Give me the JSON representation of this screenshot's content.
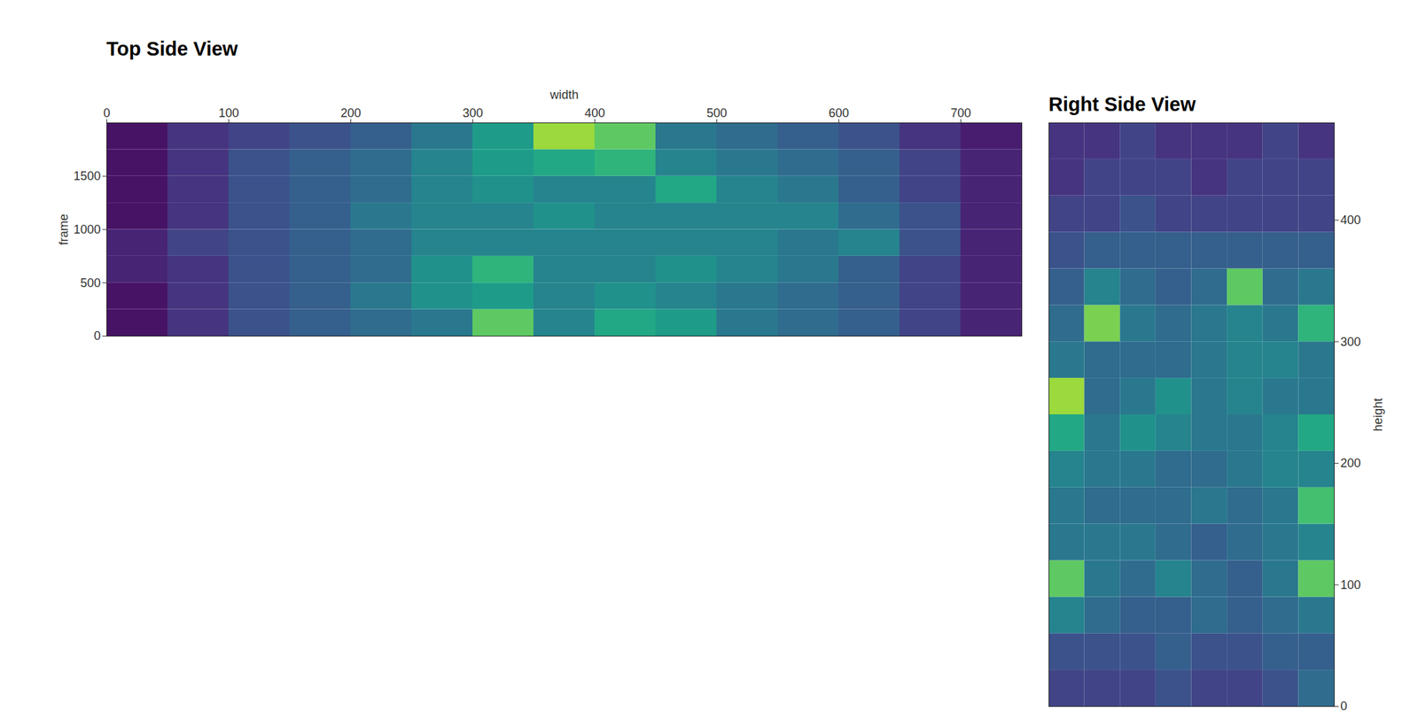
{
  "chart_data": [
    {
      "type": "heatmap",
      "title": "Top Side View",
      "x_label": "width",
      "y_label": "frame",
      "xlim": [
        0,
        750
      ],
      "ylim": [
        0,
        2000
      ],
      "xticks": [
        0,
        100,
        200,
        300,
        400,
        500,
        600,
        700
      ],
      "yticks": [
        0,
        500,
        1000,
        1500
      ],
      "color": "viridis",
      "zlim": [
        0,
        1
      ],
      "x_bins": [
        0,
        50,
        100,
        150,
        200,
        250,
        300,
        350,
        400,
        450,
        500,
        550,
        600,
        650,
        700,
        750
      ],
      "y_bins": [
        0,
        250,
        500,
        750,
        1000,
        1250,
        1500,
        1750,
        2000
      ],
      "values": [
        [
          0.05,
          0.15,
          0.25,
          0.3,
          0.35,
          0.4,
          0.75,
          0.45,
          0.6,
          0.55,
          0.4,
          0.35,
          0.3,
          0.2,
          0.1
        ],
        [
          0.05,
          0.15,
          0.25,
          0.3,
          0.4,
          0.5,
          0.55,
          0.45,
          0.5,
          0.45,
          0.4,
          0.35,
          0.3,
          0.2,
          0.1
        ],
        [
          0.1,
          0.15,
          0.25,
          0.3,
          0.35,
          0.5,
          0.65,
          0.45,
          0.45,
          0.5,
          0.45,
          0.4,
          0.3,
          0.2,
          0.1
        ],
        [
          0.1,
          0.2,
          0.25,
          0.3,
          0.35,
          0.45,
          0.45,
          0.45,
          0.45,
          0.45,
          0.45,
          0.4,
          0.45,
          0.25,
          0.1
        ],
        [
          0.05,
          0.15,
          0.25,
          0.3,
          0.4,
          0.45,
          0.45,
          0.5,
          0.45,
          0.45,
          0.45,
          0.45,
          0.35,
          0.25,
          0.1
        ],
        [
          0.05,
          0.15,
          0.25,
          0.3,
          0.35,
          0.45,
          0.5,
          0.45,
          0.45,
          0.6,
          0.45,
          0.4,
          0.3,
          0.2,
          0.1
        ],
        [
          0.05,
          0.15,
          0.25,
          0.3,
          0.35,
          0.45,
          0.55,
          0.6,
          0.65,
          0.45,
          0.4,
          0.35,
          0.3,
          0.2,
          0.1
        ],
        [
          0.05,
          0.15,
          0.2,
          0.25,
          0.3,
          0.4,
          0.55,
          0.85,
          0.75,
          0.4,
          0.35,
          0.3,
          0.25,
          0.15,
          0.08
        ]
      ]
    },
    {
      "type": "heatmap",
      "title": "Right Side View",
      "y_label": "height",
      "xlim": [
        0,
        2000
      ],
      "ylim": [
        0,
        480
      ],
      "yticks": [
        0,
        100,
        200,
        300,
        400
      ],
      "tick_labels": "y",
      "color": "viridis",
      "zlim": [
        0,
        1
      ],
      "x_bins": [
        0,
        250,
        500,
        750,
        1000,
        1250,
        1500,
        1750,
        2000
      ],
      "y_bins": [
        0,
        30,
        60,
        90,
        120,
        150,
        180,
        210,
        240,
        270,
        300,
        330,
        360,
        390,
        420,
        450,
        480
      ],
      "values": [
        [
          0.2,
          0.2,
          0.2,
          0.25,
          0.2,
          0.2,
          0.25,
          0.35
        ],
        [
          0.25,
          0.25,
          0.25,
          0.3,
          0.25,
          0.25,
          0.3,
          0.3
        ],
        [
          0.45,
          0.35,
          0.3,
          0.3,
          0.35,
          0.3,
          0.35,
          0.4
        ],
        [
          0.75,
          0.4,
          0.35,
          0.45,
          0.35,
          0.3,
          0.4,
          0.75
        ],
        [
          0.4,
          0.4,
          0.4,
          0.35,
          0.3,
          0.35,
          0.4,
          0.45
        ],
        [
          0.4,
          0.35,
          0.35,
          0.35,
          0.4,
          0.35,
          0.4,
          0.7
        ],
        [
          0.45,
          0.4,
          0.4,
          0.35,
          0.35,
          0.4,
          0.45,
          0.45
        ],
        [
          0.6,
          0.4,
          0.5,
          0.45,
          0.4,
          0.4,
          0.45,
          0.6
        ],
        [
          0.85,
          0.35,
          0.4,
          0.5,
          0.4,
          0.45,
          0.4,
          0.4
        ],
        [
          0.4,
          0.35,
          0.35,
          0.35,
          0.4,
          0.45,
          0.45,
          0.4
        ],
        [
          0.35,
          0.8,
          0.4,
          0.35,
          0.4,
          0.45,
          0.4,
          0.65
        ],
        [
          0.3,
          0.45,
          0.35,
          0.3,
          0.35,
          0.75,
          0.35,
          0.4
        ],
        [
          0.25,
          0.3,
          0.3,
          0.3,
          0.3,
          0.3,
          0.3,
          0.3
        ],
        [
          0.2,
          0.2,
          0.25,
          0.2,
          0.2,
          0.2,
          0.2,
          0.2
        ],
        [
          0.15,
          0.2,
          0.2,
          0.2,
          0.15,
          0.2,
          0.2,
          0.2
        ],
        [
          0.15,
          0.15,
          0.2,
          0.15,
          0.15,
          0.15,
          0.2,
          0.15
        ]
      ]
    }
  ]
}
